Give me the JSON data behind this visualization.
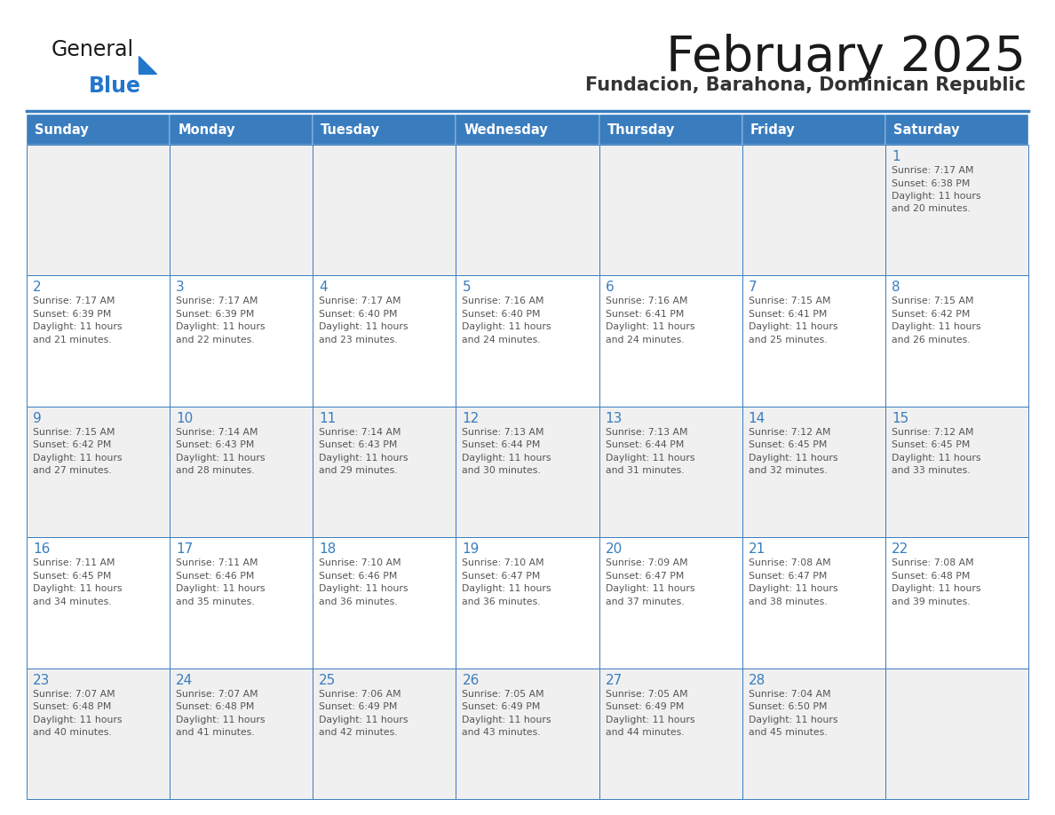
{
  "title": "February 2025",
  "subtitle": "Fundacion, Barahona, Dominican Republic",
  "header_bg_color": "#3a7dbf",
  "header_text_color": "#ffffff",
  "days_of_week": [
    "Sunday",
    "Monday",
    "Tuesday",
    "Wednesday",
    "Thursday",
    "Friday",
    "Saturday"
  ],
  "cell_bg_row0": "#f0f0f0",
  "cell_bg_row1": "#ffffff",
  "cell_bg_row2": "#f0f0f0",
  "cell_bg_row3": "#ffffff",
  "cell_bg_row4": "#f0f0f0",
  "day_num_color": "#3a7dbf",
  "info_text_color": "#555555",
  "border_color": "#3a7dbf",
  "title_color": "#1a1a1a",
  "subtitle_color": "#333333",
  "logo_general_color": "#1a1a1a",
  "logo_blue_color": "#2277cc",
  "bg_color": "#ffffff",
  "calendar_data": [
    [
      null,
      null,
      null,
      null,
      null,
      null,
      1
    ],
    [
      2,
      3,
      4,
      5,
      6,
      7,
      8
    ],
    [
      9,
      10,
      11,
      12,
      13,
      14,
      15
    ],
    [
      16,
      17,
      18,
      19,
      20,
      21,
      22
    ],
    [
      23,
      24,
      25,
      26,
      27,
      28,
      null
    ]
  ],
  "sunrise_data": {
    "1": "7:17 AM",
    "2": "7:17 AM",
    "3": "7:17 AM",
    "4": "7:17 AM",
    "5": "7:16 AM",
    "6": "7:16 AM",
    "7": "7:15 AM",
    "8": "7:15 AM",
    "9": "7:15 AM",
    "10": "7:14 AM",
    "11": "7:14 AM",
    "12": "7:13 AM",
    "13": "7:13 AM",
    "14": "7:12 AM",
    "15": "7:12 AM",
    "16": "7:11 AM",
    "17": "7:11 AM",
    "18": "7:10 AM",
    "19": "7:10 AM",
    "20": "7:09 AM",
    "21": "7:08 AM",
    "22": "7:08 AM",
    "23": "7:07 AM",
    "24": "7:07 AM",
    "25": "7:06 AM",
    "26": "7:05 AM",
    "27": "7:05 AM",
    "28": "7:04 AM"
  },
  "sunset_data": {
    "1": "6:38 PM",
    "2": "6:39 PM",
    "3": "6:39 PM",
    "4": "6:40 PM",
    "5": "6:40 PM",
    "6": "6:41 PM",
    "7": "6:41 PM",
    "8": "6:42 PM",
    "9": "6:42 PM",
    "10": "6:43 PM",
    "11": "6:43 PM",
    "12": "6:44 PM",
    "13": "6:44 PM",
    "14": "6:45 PM",
    "15": "6:45 PM",
    "16": "6:45 PM",
    "17": "6:46 PM",
    "18": "6:46 PM",
    "19": "6:47 PM",
    "20": "6:47 PM",
    "21": "6:47 PM",
    "22": "6:48 PM",
    "23": "6:48 PM",
    "24": "6:48 PM",
    "25": "6:49 PM",
    "26": "6:49 PM",
    "27": "6:49 PM",
    "28": "6:50 PM"
  },
  "daylight_minutes": {
    "1": "20",
    "2": "21",
    "3": "22",
    "4": "23",
    "5": "24",
    "6": "24",
    "7": "25",
    "8": "26",
    "9": "27",
    "10": "28",
    "11": "29",
    "12": "30",
    "13": "31",
    "14": "32",
    "15": "33",
    "16": "34",
    "17": "35",
    "18": "36",
    "19": "36",
    "20": "37",
    "21": "38",
    "22": "39",
    "23": "40",
    "24": "41",
    "25": "42",
    "26": "43",
    "27": "44",
    "28": "45"
  }
}
